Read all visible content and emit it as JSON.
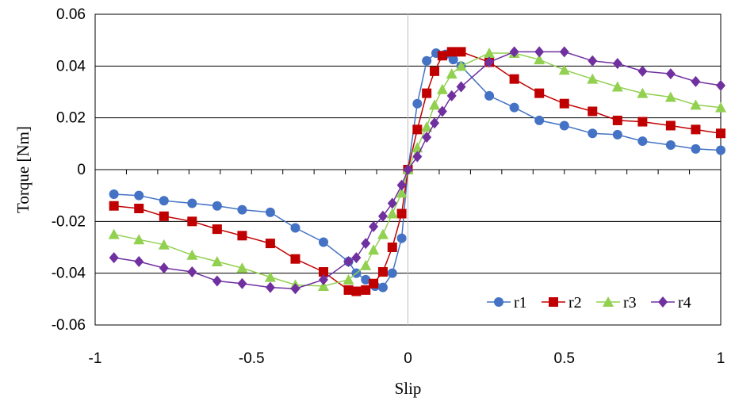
{
  "chart_data": {
    "type": "scatter",
    "title": "",
    "xlabel": "Slip",
    "ylabel": "Torque [Nm]",
    "xlim": [
      -1,
      1
    ],
    "ylim": [
      -0.06,
      0.06
    ],
    "x_ticks": [
      "-1",
      "-0.5",
      "0",
      "0.5",
      "1"
    ],
    "y_ticks": [
      "0.06",
      "0.04",
      "0.02",
      "0",
      "-0.02",
      "-0.04",
      "-0.06"
    ],
    "grid": "horizontal major gridlines",
    "legend_position": "bottom-right",
    "series": [
      {
        "name": "r1",
        "color": "#4472C4",
        "marker": "circle",
        "points": [
          [
            -0.94,
            -0.0095
          ],
          [
            -0.86,
            -0.01
          ],
          [
            -0.78,
            -0.012
          ],
          [
            -0.69,
            -0.013
          ],
          [
            -0.61,
            -0.014
          ],
          [
            -0.53,
            -0.0155
          ],
          [
            -0.44,
            -0.0165
          ],
          [
            -0.36,
            -0.0225
          ],
          [
            -0.27,
            -0.028
          ],
          [
            -0.19,
            -0.0355
          ],
          [
            -0.165,
            -0.04
          ],
          [
            -0.135,
            -0.0425
          ],
          [
            -0.105,
            -0.045
          ],
          [
            -0.08,
            -0.0455
          ],
          [
            -0.05,
            -0.04
          ],
          [
            -0.02,
            -0.0265
          ],
          [
            0,
            0
          ],
          [
            0.03,
            0.0255
          ],
          [
            0.06,
            0.042
          ],
          [
            0.09,
            0.045
          ],
          [
            0.12,
            0.0445
          ],
          [
            0.145,
            0.0425
          ],
          [
            0.17,
            0.04
          ],
          [
            0.26,
            0.0285
          ],
          [
            0.34,
            0.024
          ],
          [
            0.42,
            0.019
          ],
          [
            0.5,
            0.017
          ],
          [
            0.59,
            0.014
          ],
          [
            0.67,
            0.0135
          ],
          [
            0.75,
            0.011
          ],
          [
            0.84,
            0.0095
          ],
          [
            0.92,
            0.008
          ],
          [
            1.0,
            0.0075
          ]
        ]
      },
      {
        "name": "r2",
        "color": "#C00000",
        "marker": "square",
        "points": [
          [
            -0.94,
            -0.014
          ],
          [
            -0.86,
            -0.015
          ],
          [
            -0.78,
            -0.018
          ],
          [
            -0.69,
            -0.02
          ],
          [
            -0.61,
            -0.023
          ],
          [
            -0.53,
            -0.0255
          ],
          [
            -0.44,
            -0.0285
          ],
          [
            -0.36,
            -0.0345
          ],
          [
            -0.27,
            -0.0395
          ],
          [
            -0.19,
            -0.0465
          ],
          [
            -0.165,
            -0.047
          ],
          [
            -0.135,
            -0.0465
          ],
          [
            -0.11,
            -0.044
          ],
          [
            -0.08,
            -0.0395
          ],
          [
            -0.05,
            -0.03
          ],
          [
            -0.02,
            -0.017
          ],
          [
            0,
            0
          ],
          [
            0.03,
            0.0155
          ],
          [
            0.06,
            0.0295
          ],
          [
            0.085,
            0.038
          ],
          [
            0.11,
            0.044
          ],
          [
            0.14,
            0.0455
          ],
          [
            0.17,
            0.0455
          ],
          [
            0.26,
            0.0415
          ],
          [
            0.34,
            0.035
          ],
          [
            0.42,
            0.0295
          ],
          [
            0.5,
            0.0255
          ],
          [
            0.59,
            0.0225
          ],
          [
            0.67,
            0.019
          ],
          [
            0.75,
            0.0185
          ],
          [
            0.84,
            0.017
          ],
          [
            0.92,
            0.0155
          ],
          [
            1.0,
            0.014
          ]
        ]
      },
      {
        "name": "r3",
        "color": "#92D050",
        "marker": "triangle",
        "points": [
          [
            -0.94,
            -0.025
          ],
          [
            -0.86,
            -0.027
          ],
          [
            -0.78,
            -0.029
          ],
          [
            -0.69,
            -0.033
          ],
          [
            -0.61,
            -0.0355
          ],
          [
            -0.53,
            -0.038
          ],
          [
            -0.44,
            -0.0415
          ],
          [
            -0.36,
            -0.0445
          ],
          [
            -0.27,
            -0.045
          ],
          [
            -0.19,
            -0.0425
          ],
          [
            -0.135,
            -0.037
          ],
          [
            -0.11,
            -0.031
          ],
          [
            -0.08,
            -0.025
          ],
          [
            -0.05,
            -0.017
          ],
          [
            -0.02,
            -0.009
          ],
          [
            0,
            0
          ],
          [
            0.03,
            0.0085
          ],
          [
            0.06,
            0.0165
          ],
          [
            0.085,
            0.025
          ],
          [
            0.11,
            0.031
          ],
          [
            0.14,
            0.037
          ],
          [
            0.17,
            0.04
          ],
          [
            0.26,
            0.045
          ],
          [
            0.34,
            0.045
          ],
          [
            0.42,
            0.0425
          ],
          [
            0.5,
            0.0385
          ],
          [
            0.59,
            0.035
          ],
          [
            0.67,
            0.032
          ],
          [
            0.75,
            0.0295
          ],
          [
            0.84,
            0.028
          ],
          [
            0.92,
            0.025
          ],
          [
            1.0,
            0.024
          ]
        ]
      },
      {
        "name": "r4",
        "color": "#7030A0",
        "marker": "diamond",
        "points": [
          [
            -0.94,
            -0.034
          ],
          [
            -0.86,
            -0.0355
          ],
          [
            -0.78,
            -0.038
          ],
          [
            -0.69,
            -0.0395
          ],
          [
            -0.61,
            -0.043
          ],
          [
            -0.53,
            -0.044
          ],
          [
            -0.44,
            -0.0455
          ],
          [
            -0.36,
            -0.046
          ],
          [
            -0.27,
            -0.0425
          ],
          [
            -0.19,
            -0.0355
          ],
          [
            -0.165,
            -0.034
          ],
          [
            -0.135,
            -0.0285
          ],
          [
            -0.11,
            -0.022
          ],
          [
            -0.08,
            -0.018
          ],
          [
            -0.05,
            -0.013
          ],
          [
            -0.02,
            -0.006
          ],
          [
            0,
            0
          ],
          [
            0.03,
            0.005
          ],
          [
            0.06,
            0.0125
          ],
          [
            0.085,
            0.018
          ],
          [
            0.11,
            0.0225
          ],
          [
            0.14,
            0.0285
          ],
          [
            0.17,
            0.032
          ],
          [
            0.26,
            0.0415
          ],
          [
            0.34,
            0.0455
          ],
          [
            0.42,
            0.0455
          ],
          [
            0.5,
            0.0455
          ],
          [
            0.59,
            0.042
          ],
          [
            0.67,
            0.041
          ],
          [
            0.75,
            0.038
          ],
          [
            0.84,
            0.037
          ],
          [
            0.92,
            0.034
          ],
          [
            1.0,
            0.0325
          ]
        ]
      }
    ]
  }
}
